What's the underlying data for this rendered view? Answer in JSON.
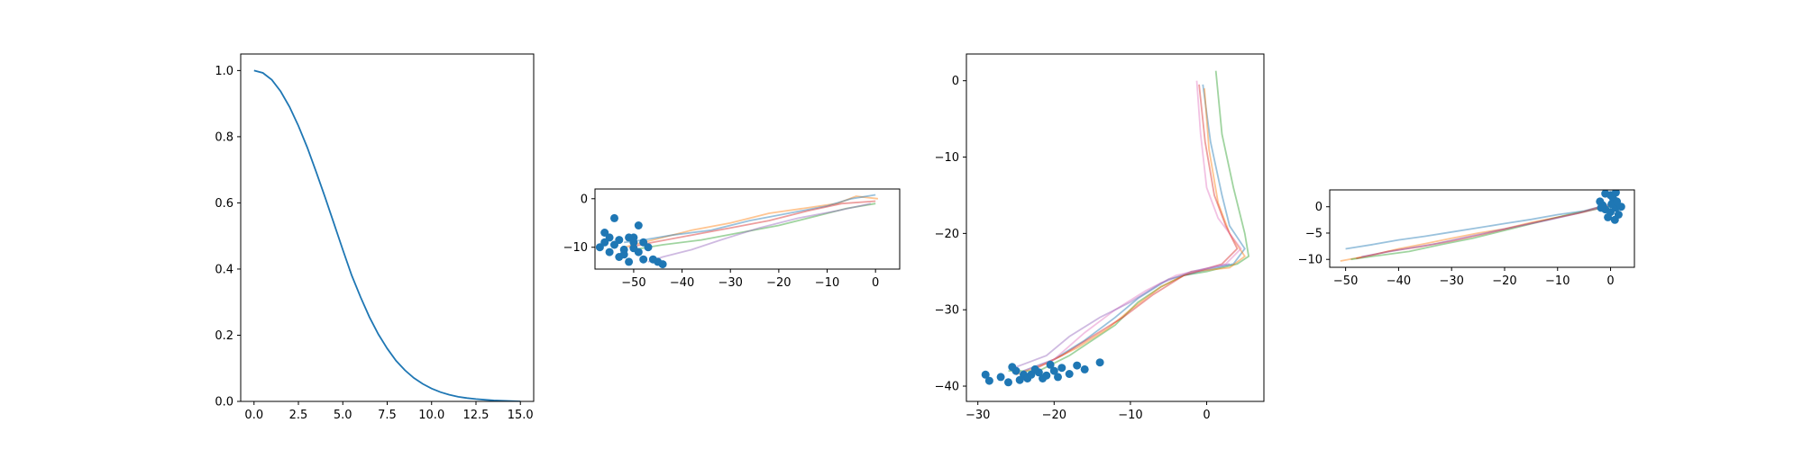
{
  "chart_data": [
    {
      "type": "line",
      "title": "",
      "xlabel": "",
      "ylabel": "",
      "xlim": [
        -0.75,
        15.75
      ],
      "ylim": [
        0.0,
        1.05
      ],
      "xticks": [
        "0.0",
        "2.5",
        "5.0",
        "7.5",
        "10.0",
        "12.5",
        "15.0"
      ],
      "yticks": [
        "0.0",
        "0.2",
        "0.4",
        "0.6",
        "0.8",
        "1.0"
      ],
      "grid": false,
      "legend": "none",
      "series": [
        {
          "color": "#1f77b4",
          "x": [
            0,
            0.5,
            1,
            1.5,
            2,
            2.5,
            3,
            3.5,
            4,
            4.5,
            5,
            5.5,
            6,
            6.5,
            7,
            7.5,
            8,
            8.5,
            9,
            9.5,
            10,
            10.5,
            11,
            11.5,
            12,
            12.5,
            13,
            13.5,
            14,
            14.5,
            15
          ],
          "y": [
            1.0,
            0.993,
            0.972,
            0.937,
            0.89,
            0.833,
            0.767,
            0.694,
            0.617,
            0.538,
            0.458,
            0.381,
            0.315,
            0.255,
            0.203,
            0.16,
            0.123,
            0.094,
            0.071,
            0.053,
            0.039,
            0.028,
            0.02,
            0.014,
            0.01,
            0.007,
            0.005,
            0.003,
            0.002,
            0.001,
            0.0
          ]
        }
      ]
    },
    {
      "type": "scatter",
      "title": "",
      "xlabel": "",
      "ylabel": "",
      "xlim": [
        -58,
        5
      ],
      "ylim": [
        -14.5,
        2
      ],
      "xticks": [
        "-50",
        "-40",
        "-30",
        "-20",
        "-10",
        "0"
      ],
      "yticks": [
        "-10",
        "0"
      ],
      "grid": false,
      "legend": "none",
      "lines": [
        {
          "color": "#ff7f0e",
          "points": [
            [
              0.5,
              0
            ],
            [
              -4,
              0.5
            ],
            [
              -8,
              -1
            ],
            [
              -15,
              -2
            ],
            [
              -22,
              -3
            ],
            [
              -30,
              -5
            ],
            [
              -38,
              -6.5
            ],
            [
              -44,
              -8
            ],
            [
              -50,
              -9.5
            ],
            [
              -52,
              -10
            ]
          ]
        },
        {
          "color": "#1f77b4",
          "points": [
            [
              0,
              0.8
            ],
            [
              -5,
              0
            ],
            [
              -10,
              -1.5
            ],
            [
              -18,
              -3
            ],
            [
              -26,
              -4.5
            ],
            [
              -34,
              -6.5
            ],
            [
              -42,
              -7.5
            ],
            [
              -48,
              -8.5
            ],
            [
              -52,
              -9
            ]
          ]
        },
        {
          "color": "#2ca02c",
          "points": [
            [
              0,
              -1
            ],
            [
              -6,
              -2
            ],
            [
              -12,
              -3.5
            ],
            [
              -20,
              -5.5
            ],
            [
              -28,
              -7
            ],
            [
              -36,
              -8.5
            ],
            [
              -44,
              -9.5
            ],
            [
              -50,
              -10.5
            ]
          ]
        },
        {
          "color": "#d62728",
          "points": [
            [
              0,
              -0.5
            ],
            [
              -7,
              -1
            ],
            [
              -14,
              -2.5
            ],
            [
              -22,
              -4.5
            ],
            [
              -30,
              -6
            ],
            [
              -38,
              -7.5
            ],
            [
              -46,
              -9
            ],
            [
              -51,
              -10
            ]
          ]
        },
        {
          "color": "#9467bd",
          "points": [
            [
              -1,
              -1
            ],
            [
              -8,
              -2.5
            ],
            [
              -16,
              -4
            ],
            [
              -24,
              -6
            ],
            [
              -32,
              -8.5
            ],
            [
              -38,
              -10.5
            ],
            [
              -44,
              -12
            ],
            [
              -47,
              -13
            ]
          ]
        }
      ],
      "points": {
        "color": "#1f77b4",
        "values": [
          [
            -54,
            -4
          ],
          [
            -49,
            -5.5
          ],
          [
            -56,
            -7
          ],
          [
            -55,
            -8
          ],
          [
            -53,
            -8.5
          ],
          [
            -51,
            -8
          ],
          [
            -50,
            -9
          ],
          [
            -57,
            -10
          ],
          [
            -55,
            -11
          ],
          [
            -53,
            -12
          ],
          [
            -52,
            -10.5
          ],
          [
            -49,
            -11
          ],
          [
            -48,
            -12.5
          ],
          [
            -51,
            -13
          ],
          [
            -54,
            -9.5
          ],
          [
            -50,
            -10.2
          ],
          [
            -52,
            -11.5
          ],
          [
            -47,
            -10
          ],
          [
            -45,
            -13
          ],
          [
            -44,
            -13.5
          ],
          [
            -46,
            -12.5
          ],
          [
            -56,
            -9
          ],
          [
            -50,
            -8
          ],
          [
            -48,
            -9
          ]
        ]
      }
    },
    {
      "type": "scatter",
      "title": "",
      "xlabel": "",
      "ylabel": "",
      "xlim": [
        -31.5,
        7.5
      ],
      "ylim": [
        -42,
        3.5
      ],
      "xticks": [
        "-30",
        "-20",
        "-10",
        "0"
      ],
      "yticks": [
        "-40",
        "-30",
        "-20",
        "-10",
        "0"
      ],
      "grid": false,
      "legend": "none",
      "lines": [
        {
          "color": "#2ca02c",
          "points": [
            [
              1.2,
              1.3
            ],
            [
              2,
              -7
            ],
            [
              3.5,
              -14
            ],
            [
              5,
              -20
            ],
            [
              5.5,
              -23
            ],
            [
              4,
              -24
            ],
            [
              0,
              -25
            ],
            [
              -3,
              -25.5
            ],
            [
              -6,
              -27
            ],
            [
              -9,
              -29
            ],
            [
              -12,
              -32
            ],
            [
              -15,
              -34
            ],
            [
              -18,
              -36
            ],
            [
              -22,
              -38
            ],
            [
              -26,
              -38
            ]
          ]
        },
        {
          "color": "#1f77b4",
          "points": [
            [
              -0.5,
              -0.5
            ],
            [
              0.5,
              -8
            ],
            [
              2,
              -15
            ],
            [
              3,
              -19
            ],
            [
              5,
              -22
            ],
            [
              3.5,
              -24
            ],
            [
              -1,
              -25
            ],
            [
              -5,
              -26
            ],
            [
              -9,
              -28.5
            ],
            [
              -12,
              -31
            ],
            [
              -16,
              -34
            ],
            [
              -20,
              -36.5
            ],
            [
              -24,
              -38
            ]
          ]
        },
        {
          "color": "#ff7f0e",
          "points": [
            [
              -0.3,
              -1
            ],
            [
              0.3,
              -9
            ],
            [
              1.5,
              -16
            ],
            [
              3,
              -20
            ],
            [
              5,
              -23
            ],
            [
              3,
              -24.5
            ],
            [
              -2,
              -25
            ],
            [
              -6,
              -27
            ],
            [
              -10,
              -30
            ],
            [
              -13,
              -32.5
            ],
            [
              -17,
              -35
            ],
            [
              -21,
              -37
            ],
            [
              -25,
              -38.5
            ]
          ]
        },
        {
          "color": "#d62728",
          "points": [
            [
              -1,
              -0.5
            ],
            [
              -0.2,
              -8
            ],
            [
              1,
              -15
            ],
            [
              2.5,
              -19
            ],
            [
              4,
              -22
            ],
            [
              2,
              -24
            ],
            [
              -3,
              -25.5
            ],
            [
              -7,
              -28
            ],
            [
              -11,
              -31
            ],
            [
              -15,
              -33.5
            ],
            [
              -19,
              -36
            ],
            [
              -23,
              -38
            ]
          ]
        },
        {
          "color": "#e377c2",
          "points": [
            [
              -1.3,
              0
            ],
            [
              -0.8,
              -7
            ],
            [
              0,
              -14
            ],
            [
              1.5,
              -18
            ],
            [
              4.5,
              -22
            ],
            [
              2.5,
              -24
            ],
            [
              -4,
              -25.5
            ],
            [
              -8,
              -27.5
            ],
            [
              -12,
              -30
            ],
            [
              -16,
              -33
            ],
            [
              -20,
              -36.5
            ],
            [
              -24,
              -38
            ]
          ]
        },
        {
          "color": "#9467bd",
          "points": [
            [
              3,
              -24
            ],
            [
              -2,
              -25
            ],
            [
              -6,
              -26.5
            ],
            [
              -10,
              -29
            ],
            [
              -14,
              -31
            ],
            [
              -18,
              -33.5
            ],
            [
              -21,
              -36
            ],
            [
              -25,
              -37.5
            ]
          ]
        }
      ],
      "points": {
        "color": "#1f77b4",
        "values": [
          [
            -29,
            -38.5
          ],
          [
            -28.5,
            -39.3
          ],
          [
            -27,
            -38.8
          ],
          [
            -26,
            -39.5
          ],
          [
            -25,
            -38
          ],
          [
            -24,
            -38.5
          ],
          [
            -23.5,
            -39
          ],
          [
            -22,
            -38.2
          ],
          [
            -21,
            -38.6
          ],
          [
            -20,
            -38
          ],
          [
            -19,
            -37.6
          ],
          [
            -18,
            -38.4
          ],
          [
            -17,
            -37.3
          ],
          [
            -16,
            -37.8
          ],
          [
            -14,
            -36.9
          ],
          [
            -25.5,
            -37.5
          ],
          [
            -22.5,
            -37.8
          ],
          [
            -19.5,
            -38.8
          ],
          [
            -24.5,
            -39.2
          ],
          [
            -20.5,
            -37.2
          ],
          [
            -23,
            -38.5
          ],
          [
            -21.5,
            -39
          ]
        ]
      }
    },
    {
      "type": "scatter",
      "title": "",
      "xlabel": "",
      "ylabel": "",
      "xlim": [
        -53,
        4.5
      ],
      "ylim": [
        -11.5,
        3.2
      ],
      "xticks": [
        "-50",
        "-40",
        "-30",
        "-20",
        "-10",
        "0"
      ],
      "yticks": [
        "-10",
        "-5",
        "0"
      ],
      "grid": false,
      "legend": "none",
      "lines": [
        {
          "color": "#1f77b4",
          "points": [
            [
              -50,
              -8
            ],
            [
              -45,
              -7.2
            ],
            [
              -40,
              -6.3
            ],
            [
              -35,
              -5.6
            ],
            [
              -30,
              -4.8
            ],
            [
              -25,
              -4
            ],
            [
              -20,
              -3.2
            ],
            [
              -15,
              -2.4
            ],
            [
              -10,
              -1.5
            ],
            [
              -5,
              -0.8
            ],
            [
              -2,
              0
            ],
            [
              0,
              0.5
            ]
          ]
        },
        {
          "color": "#ff7f0e",
          "points": [
            [
              -51,
              -10.3
            ],
            [
              -45,
              -9.2
            ],
            [
              -40,
              -8
            ],
            [
              -35,
              -7
            ],
            [
              -30,
              -6
            ],
            [
              -25,
              -5
            ],
            [
              -20,
              -4.2
            ],
            [
              -15,
              -3
            ],
            [
              -10,
              -2
            ],
            [
              -5,
              -1
            ],
            [
              -1,
              0
            ]
          ]
        },
        {
          "color": "#2ca02c",
          "points": [
            [
              -49,
              -10
            ],
            [
              -44,
              -9.3
            ],
            [
              -38,
              -8.5
            ],
            [
              -32,
              -7.2
            ],
            [
              -26,
              -6
            ],
            [
              -20,
              -4.5
            ],
            [
              -14,
              -3
            ],
            [
              -8,
              -1.5
            ],
            [
              -3,
              -0.5
            ],
            [
              0,
              0
            ]
          ]
        },
        {
          "color": "#d62728",
          "points": [
            [
              -48,
              -9.8
            ],
            [
              -42,
              -8.5
            ],
            [
              -36,
              -7.6
            ],
            [
              -30,
              -6.5
            ],
            [
              -24,
              -5.2
            ],
            [
              -18,
              -3.8
            ],
            [
              -12,
              -2.5
            ],
            [
              -6,
              -1.2
            ],
            [
              -2,
              0
            ],
            [
              0,
              0.3
            ]
          ]
        },
        {
          "color": "#9467bd",
          "points": [
            [
              -47,
              -9.5
            ],
            [
              -40,
              -8.2
            ],
            [
              -33,
              -7
            ],
            [
              -26,
              -5.5
            ],
            [
              -19,
              -4
            ],
            [
              -12,
              -2.6
            ],
            [
              -6,
              -1.2
            ],
            [
              -1,
              0
            ]
          ]
        }
      ],
      "points": {
        "color": "#1f77b4",
        "values": [
          [
            -1,
            2.5
          ],
          [
            0,
            2.2
          ],
          [
            1,
            2.7
          ],
          [
            -2,
            1
          ],
          [
            -1.5,
            0.3
          ],
          [
            -1,
            -0.5
          ],
          [
            0,
            -1
          ],
          [
            1,
            -0.2
          ],
          [
            2,
            0
          ],
          [
            0.5,
            1.5
          ],
          [
            -0.5,
            -2
          ],
          [
            0.8,
            -2.5
          ],
          [
            1.5,
            -1.5
          ],
          [
            -1.8,
            -0.2
          ],
          [
            0.2,
            0.5
          ],
          [
            1.2,
            1
          ]
        ]
      }
    }
  ]
}
